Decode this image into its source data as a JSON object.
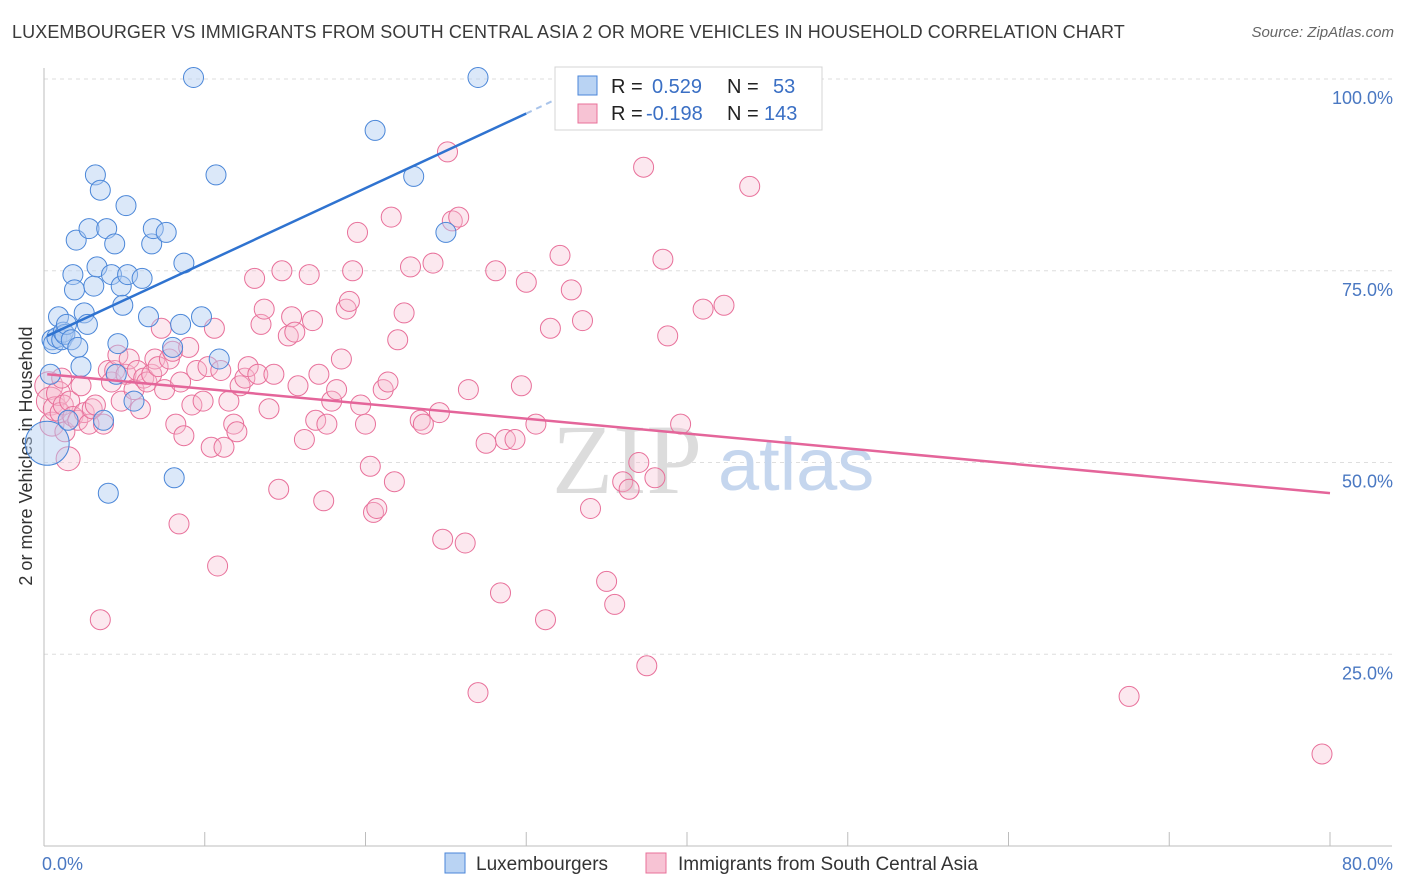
{
  "header": {
    "title": "LUXEMBOURGER VS IMMIGRANTS FROM SOUTH CENTRAL ASIA 2 OR MORE VEHICLES IN HOUSEHOLD CORRELATION CHART",
    "source": "Source: ZipAtlas.com"
  },
  "watermark": {
    "zip": "ZIP",
    "atlas": "atlas"
  },
  "colors": {
    "blue": "#4a86d8",
    "pink": "#e8709a",
    "blue_fill": "#b9d3f3",
    "pink_fill": "#f7c3d4"
  },
  "chart_data": {
    "type": "scatter",
    "title": "LUXEMBOURGER VS IMMIGRANTS FROM SOUTH CENTRAL ASIA 2 OR MORE VEHICLES IN HOUSEHOLD CORRELATION CHART",
    "xlabel": "",
    "ylabel": "2 or more Vehicles in Household",
    "xlim": [
      0,
      80
    ],
    "ylim": [
      0,
      102
    ],
    "x_tick_labels": [
      "0.0%",
      "80.0%"
    ],
    "y_tick_labels": [
      "100.0%",
      "75.0%",
      "50.0%",
      "25.0%"
    ],
    "y_tick_values": [
      100,
      75,
      50,
      25
    ],
    "legend": {
      "r_label": "R =",
      "n_label": "N =",
      "entries": [
        {
          "name": "Luxembourgers",
          "r": "0.529",
          "n": "53"
        },
        {
          "name": "Immigrants from South Central Asia",
          "r": "-0.198",
          "n": "143"
        }
      ]
    },
    "series": [
      {
        "name": "Luxembourgers",
        "trend": {
          "x0": 0.2,
          "y0": 66.5,
          "x1": 30.0,
          "y1": 95.5,
          "dash_to_x": 34.0,
          "dash_to_y": 99.5
        },
        "points": [
          [
            0.2,
            52.5,
            22
          ],
          [
            0.4,
            61.5,
            10
          ],
          [
            0.5,
            66,
            10
          ],
          [
            0.6,
            65.5,
            10
          ],
          [
            0.8,
            66.3,
            10
          ],
          [
            0.9,
            69,
            10
          ],
          [
            1.1,
            66,
            10
          ],
          [
            1.2,
            67,
            10
          ],
          [
            1.3,
            66.7,
            10
          ],
          [
            1.4,
            68,
            10
          ],
          [
            1.5,
            55.5,
            10
          ],
          [
            1.7,
            66,
            10
          ],
          [
            1.8,
            74.5,
            10
          ],
          [
            1.9,
            72.5,
            10
          ],
          [
            2.0,
            79,
            10
          ],
          [
            2.1,
            65,
            10
          ],
          [
            2.3,
            62.5,
            10
          ],
          [
            2.5,
            69.5,
            10
          ],
          [
            2.7,
            68,
            10
          ],
          [
            2.8,
            80.5,
            10
          ],
          [
            3.1,
            73,
            10
          ],
          [
            3.2,
            87.5,
            10
          ],
          [
            3.3,
            75.5,
            10
          ],
          [
            3.5,
            85.5,
            10
          ],
          [
            3.7,
            55.5,
            10
          ],
          [
            3.9,
            80.5,
            10
          ],
          [
            4.0,
            46,
            10
          ],
          [
            4.2,
            74.5,
            10
          ],
          [
            4.4,
            78.5,
            10
          ],
          [
            4.5,
            61.5,
            10
          ],
          [
            4.6,
            65.5,
            10
          ],
          [
            4.8,
            73,
            10
          ],
          [
            4.9,
            70.5,
            10
          ],
          [
            5.1,
            83.5,
            10
          ],
          [
            5.2,
            74.5,
            10
          ],
          [
            5.6,
            58,
            10
          ],
          [
            6.1,
            74,
            10
          ],
          [
            6.5,
            69,
            10
          ],
          [
            6.7,
            78.5,
            10
          ],
          [
            6.8,
            80.5,
            10
          ],
          [
            7.6,
            80,
            10
          ],
          [
            8.0,
            65,
            10
          ],
          [
            8.1,
            48,
            10
          ],
          [
            8.5,
            68,
            10
          ],
          [
            8.7,
            76,
            10
          ],
          [
            9.3,
            100.2,
            10
          ],
          [
            9.8,
            69,
            10
          ],
          [
            10.7,
            87.5,
            10
          ],
          [
            10.9,
            63.5,
            10
          ],
          [
            20.6,
            93.3,
            10
          ],
          [
            23.0,
            87.3,
            10
          ],
          [
            25.0,
            80,
            10
          ],
          [
            27.0,
            100.2,
            10
          ]
        ]
      },
      {
        "name": "Immigrants from South Central Asia",
        "trend": {
          "x0": 0.2,
          "y0": 61.5,
          "x1": 80.0,
          "y1": 46.0
        },
        "points": [
          [
            0.3,
            60,
            14
          ],
          [
            0.4,
            58,
            14
          ],
          [
            0.5,
            55,
            12
          ],
          [
            0.7,
            57,
            12
          ],
          [
            0.9,
            59,
            12
          ],
          [
            1.0,
            56.5,
            10
          ],
          [
            1.1,
            61,
            10
          ],
          [
            1.2,
            57.5,
            10
          ],
          [
            1.3,
            54,
            10
          ],
          [
            1.5,
            50.5,
            12
          ],
          [
            1.6,
            58,
            10
          ],
          [
            1.8,
            56,
            10
          ],
          [
            2.1,
            55.5,
            10
          ],
          [
            2.3,
            60,
            10
          ],
          [
            2.5,
            56.5,
            10
          ],
          [
            2.8,
            55,
            10
          ],
          [
            3.0,
            57,
            10
          ],
          [
            3.2,
            57.5,
            10
          ],
          [
            3.5,
            29.5,
            10
          ],
          [
            3.7,
            55,
            10
          ],
          [
            4.0,
            62,
            10
          ],
          [
            4.2,
            60.5,
            10
          ],
          [
            4.4,
            62,
            10
          ],
          [
            4.6,
            64,
            10
          ],
          [
            4.8,
            58,
            10
          ],
          [
            5.1,
            61.5,
            10
          ],
          [
            5.3,
            63.5,
            10
          ],
          [
            5.6,
            59.5,
            10
          ],
          [
            5.8,
            62,
            10
          ],
          [
            6.0,
            57,
            10
          ],
          [
            6.2,
            61,
            10
          ],
          [
            6.4,
            60.5,
            10
          ],
          [
            6.7,
            61.5,
            10
          ],
          [
            6.9,
            63.5,
            10
          ],
          [
            7.1,
            62.5,
            10
          ],
          [
            7.3,
            67.5,
            10
          ],
          [
            7.5,
            59.5,
            10
          ],
          [
            7.8,
            63.5,
            10
          ],
          [
            8.0,
            64.5,
            10
          ],
          [
            8.2,
            55,
            10
          ],
          [
            8.4,
            42,
            10
          ],
          [
            8.5,
            60.5,
            10
          ],
          [
            8.7,
            53.5,
            10
          ],
          [
            9.0,
            65,
            10
          ],
          [
            9.2,
            57.5,
            10
          ],
          [
            9.5,
            62,
            10
          ],
          [
            9.9,
            58,
            10
          ],
          [
            10.2,
            62.5,
            10
          ],
          [
            10.4,
            52,
            10
          ],
          [
            10.6,
            67.5,
            10
          ],
          [
            10.8,
            36.5,
            10
          ],
          [
            11.0,
            62,
            10
          ],
          [
            11.2,
            52,
            10
          ],
          [
            11.5,
            58,
            10
          ],
          [
            11.8,
            55,
            10
          ],
          [
            12.0,
            54,
            10
          ],
          [
            12.2,
            60,
            10
          ],
          [
            12.5,
            61,
            10
          ],
          [
            12.7,
            62.5,
            10
          ],
          [
            13.1,
            74,
            10
          ],
          [
            13.3,
            61.5,
            10
          ],
          [
            13.5,
            68,
            10
          ],
          [
            13.7,
            70,
            10
          ],
          [
            14.0,
            57,
            10
          ],
          [
            14.3,
            61.5,
            10
          ],
          [
            14.6,
            46.5,
            10
          ],
          [
            14.8,
            75,
            10
          ],
          [
            15.2,
            66.5,
            10
          ],
          [
            15.4,
            69,
            10
          ],
          [
            15.6,
            67,
            10
          ],
          [
            15.8,
            60,
            10
          ],
          [
            16.2,
            53,
            10
          ],
          [
            16.5,
            74.5,
            10
          ],
          [
            16.7,
            68.5,
            10
          ],
          [
            16.9,
            55.5,
            10
          ],
          [
            17.1,
            61.5,
            10
          ],
          [
            17.4,
            45,
            10
          ],
          [
            17.6,
            55,
            10
          ],
          [
            17.9,
            58,
            10
          ],
          [
            18.2,
            59.5,
            10
          ],
          [
            18.5,
            63.5,
            10
          ],
          [
            18.8,
            70,
            10
          ],
          [
            19.0,
            71,
            10
          ],
          [
            19.2,
            75,
            10
          ],
          [
            19.5,
            80,
            10
          ],
          [
            19.7,
            57.5,
            10
          ],
          [
            20.0,
            55,
            10
          ],
          [
            20.3,
            49.5,
            10
          ],
          [
            20.5,
            43.5,
            10
          ],
          [
            20.7,
            44,
            10
          ],
          [
            21.1,
            59.5,
            10
          ],
          [
            21.4,
            60.5,
            10
          ],
          [
            21.6,
            82,
            10
          ],
          [
            21.8,
            47.5,
            10
          ],
          [
            22.0,
            66,
            10
          ],
          [
            22.4,
            69.5,
            10
          ],
          [
            22.8,
            75.5,
            10
          ],
          [
            23.4,
            55.5,
            10
          ],
          [
            23.6,
            55,
            10
          ],
          [
            24.2,
            76,
            10
          ],
          [
            24.6,
            56.5,
            10
          ],
          [
            24.8,
            40,
            10
          ],
          [
            25.1,
            90.5,
            10
          ],
          [
            25.4,
            81.5,
            10
          ],
          [
            25.8,
            82,
            10
          ],
          [
            26.2,
            39.5,
            10
          ],
          [
            26.4,
            59.5,
            10
          ],
          [
            27.0,
            20,
            10
          ],
          [
            27.5,
            52.5,
            10
          ],
          [
            28.1,
            75,
            10
          ],
          [
            28.4,
            33,
            10
          ],
          [
            28.7,
            53,
            10
          ],
          [
            29.3,
            53,
            10
          ],
          [
            29.7,
            60,
            10
          ],
          [
            30.0,
            73.5,
            10
          ],
          [
            30.6,
            55,
            10
          ],
          [
            31.2,
            29.5,
            10
          ],
          [
            31.5,
            67.5,
            10
          ],
          [
            32.1,
            77,
            10
          ],
          [
            32.8,
            72.5,
            10
          ],
          [
            33.5,
            68.5,
            10
          ],
          [
            34.0,
            44,
            10
          ],
          [
            35.0,
            34.5,
            10
          ],
          [
            35.5,
            31.5,
            10
          ],
          [
            36.0,
            47.5,
            10
          ],
          [
            36.4,
            46.5,
            10
          ],
          [
            37.0,
            50,
            10
          ],
          [
            37.3,
            88.5,
            10
          ],
          [
            37.5,
            23.5,
            10
          ],
          [
            38.0,
            48,
            10
          ],
          [
            38.5,
            76.5,
            10
          ],
          [
            38.8,
            66.5,
            10
          ],
          [
            39.6,
            55,
            10
          ],
          [
            41.0,
            70,
            10
          ],
          [
            42.3,
            70.5,
            10
          ],
          [
            43.9,
            86,
            10
          ],
          [
            67.5,
            19.5,
            10
          ],
          [
            79.5,
            12,
            10
          ]
        ]
      }
    ]
  }
}
